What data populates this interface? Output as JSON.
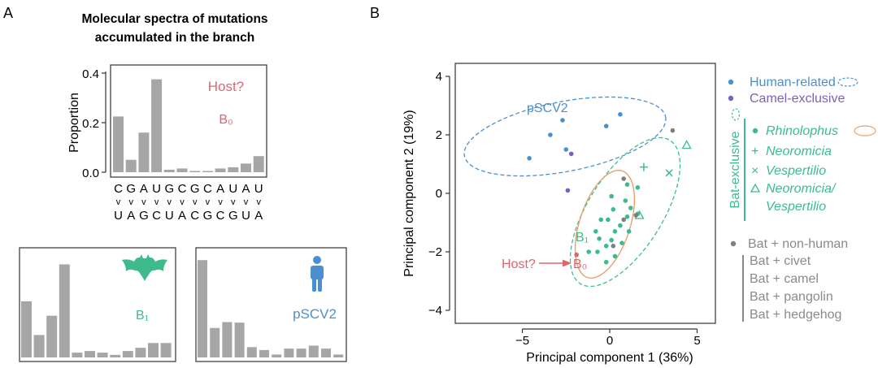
{
  "panel_labels": {
    "a": "A",
    "b": "B"
  },
  "colors": {
    "bar": "#a6a6a6",
    "host": "#e0646f",
    "bat": "#3dbb8d",
    "human": "#4a90d0",
    "camel": "#7b62b8",
    "grey": "#7f7f7f",
    "legend_grey": "#8a8a8a",
    "rhino_ellipse": "#e8a06a"
  },
  "panel_a": {
    "title_line1": "Molecular spectra of mutations",
    "title_line2": "accumulated in the branch",
    "host_label": "Host?",
    "b0_label": "B₀",
    "b1_label": "B₁",
    "pscv2_label": "pSCV2",
    "arrow_glyph": "v",
    "bat_icon": "bat-icon",
    "human_icon": "person-icon"
  },
  "panel_b": {
    "human_cluster_label": "pSCV2",
    "b1_label": "B₁",
    "b0_label": "B₀",
    "host_label": "Host?",
    "legend": {
      "human": "Human-related",
      "camel": "Camel-exclusive",
      "bat_group": "Bat-exclusive",
      "rhino": "Rhinolophus",
      "neoromicia": "Neoromicia",
      "vespertilio": "Vespertilio",
      "nv_line1": "Neoromicia/",
      "nv_line2": "Vespertilio",
      "bat_nonhuman": "Bat + non-human",
      "civet": "Bat + civet",
      "camel_sub": "Bat + camel",
      "pangolin": "Bat + pangolin",
      "hedgehog": "Bat + hedgehog"
    }
  },
  "chart_data": [
    {
      "type": "bar",
      "title": "Molecular spectra of mutations accumulated in the branch",
      "panel": "B₀",
      "ylabel": "Proportion",
      "ylim": [
        0,
        0.4
      ],
      "yticks": [
        0.0,
        0.2,
        0.4
      ],
      "categories": [
        "C>U",
        "G>A",
        "A>G",
        "U>C",
        "G>U",
        "C>A",
        "G>C",
        "C>G",
        "A>U",
        "U>A",
        "A>C",
        "U>G"
      ],
      "tick_top": [
        "C",
        "G",
        "A",
        "U",
        "G",
        "C",
        "G",
        "C",
        "A",
        "U",
        "A",
        "U"
      ],
      "tick_bottom": [
        "U",
        "A",
        "G",
        "C",
        "U",
        "A",
        "C",
        "G",
        "C",
        "G",
        "U",
        "A"
      ],
      "values": [
        0.225,
        0.05,
        0.16,
        0.375,
        0.01,
        0.015,
        0.005,
        0.005,
        0.015,
        0.02,
        0.035,
        0.065
      ]
    },
    {
      "type": "bar",
      "panel": "B₁",
      "categories": [
        "C>U",
        "G>A",
        "A>G",
        "U>C",
        "G>U",
        "C>A",
        "G>C",
        "C>G",
        "A>U",
        "U>A",
        "A>C",
        "U>G"
      ],
      "values": [
        0.175,
        0.07,
        0.13,
        0.29,
        0.015,
        0.02,
        0.015,
        0.008,
        0.02,
        0.03,
        0.045,
        0.045
      ]
    },
    {
      "type": "bar",
      "panel": "pSCV2",
      "categories": [
        "C>U",
        "G>A",
        "A>G",
        "U>C",
        "G>U",
        "C>A",
        "G>C",
        "C>G",
        "A>U",
        "U>A",
        "A>C",
        "U>G"
      ],
      "values": [
        0.33,
        0.1,
        0.12,
        0.118,
        0.035,
        0.025,
        0.01,
        0.03,
        0.03,
        0.04,
        0.03,
        0.01
      ]
    },
    {
      "type": "scatter",
      "xlabel": "Principal component 1 (36%)",
      "ylabel": "Principal component 2 (19%)",
      "xlim": [
        -9,
        6
      ],
      "ylim": [
        -4.6,
        4.6
      ],
      "xticks": [
        -5,
        0,
        5
      ],
      "yticks": [
        -4,
        -2,
        0,
        2,
        4
      ],
      "series": [
        {
          "name": "Human-related",
          "color": "#4a90d0",
          "marker": "dot",
          "points": [
            [
              -3.4,
              2.0
            ],
            [
              -2.7,
              2.5
            ],
            [
              -4.6,
              1.2
            ],
            [
              -2.5,
              1.5
            ],
            [
              -0.2,
              2.3
            ],
            [
              0.6,
              2.7
            ]
          ]
        },
        {
          "name": "Camel-exclusive",
          "color": "#7b62b8",
          "marker": "dot",
          "points": [
            [
              -2.2,
              1.35
            ],
            [
              -2.4,
              0.1
            ]
          ]
        },
        {
          "name": "Rhinolophus",
          "color": "#3dbb8d",
          "marker": "dot",
          "points": [
            [
              1.0,
              0.3
            ],
            [
              1.6,
              0.2
            ],
            [
              0.1,
              -0.1
            ],
            [
              0.9,
              -0.25
            ],
            [
              1.2,
              -0.5
            ],
            [
              0.2,
              -0.55
            ],
            [
              1.6,
              -0.7
            ],
            [
              1.0,
              -0.8
            ],
            [
              -0.1,
              -0.9
            ],
            [
              -0.5,
              -0.9
            ],
            [
              0.6,
              -1.1
            ],
            [
              0.3,
              -1.3
            ],
            [
              -0.8,
              -1.3
            ],
            [
              1.1,
              -1.3
            ],
            [
              -0.6,
              -1.55
            ],
            [
              0.1,
              -1.6
            ],
            [
              0.7,
              -1.7
            ],
            [
              -0.2,
              -1.8
            ],
            [
              -1.2,
              -2.0
            ],
            [
              -0.7,
              -2.0
            ],
            [
              0.3,
              -2.15
            ],
            [
              -0.2,
              -2.35
            ]
          ]
        },
        {
          "name": "Neoromicia",
          "color": "#3dbb8d",
          "marker": "plus",
          "points": [
            [
              1.95,
              0.9
            ]
          ]
        },
        {
          "name": "Vespertilio",
          "color": "#3dbb8d",
          "marker": "cross",
          "points": [
            [
              3.4,
              0.7
            ]
          ]
        },
        {
          "name": "Neoromicia/Vespertilio",
          "color": "#3dbb8d",
          "marker": "triangle",
          "points": [
            [
              4.4,
              1.65
            ],
            [
              1.7,
              -0.75
            ]
          ]
        },
        {
          "name": "Bat + non-human",
          "color": "#7f7f7f",
          "marker": "dot",
          "points": [
            [
              3.6,
              2.15
            ],
            [
              0.8,
              0.5
            ],
            [
              0.8,
              -0.9
            ],
            [
              0.2,
              -1.8
            ],
            [
              1.5,
              -0.75
            ]
          ]
        },
        {
          "name": "B₀",
          "color": "#e0646f",
          "marker": "dot",
          "points": [
            [
              -1.9,
              -2.1
            ]
          ]
        }
      ]
    }
  ]
}
